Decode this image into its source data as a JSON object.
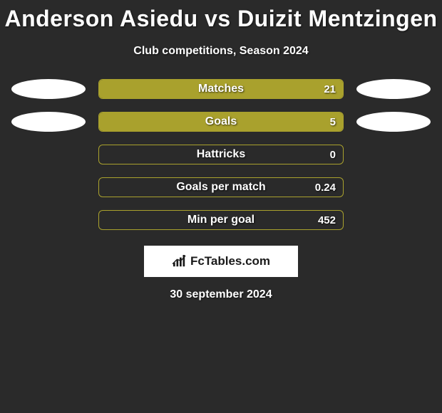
{
  "title": "Anderson Asiedu vs Duizit Mentzingen",
  "subtitle": "Club competitions, Season 2024",
  "date": "30 september 2024",
  "logo": {
    "text": "FcTables.com"
  },
  "ellipses": {
    "left_color": "#ffffff",
    "right_color": "#ffffff"
  },
  "bar_style": {
    "border_color": "#a9a12d",
    "fill_color": "#a9a12d",
    "label_fontsize": 16,
    "value_fontsize": 15,
    "height": 28,
    "border_radius": 6
  },
  "rows": [
    {
      "label": "Matches",
      "value": "21",
      "fill_pct": 100,
      "left_ellipse": true,
      "right_ellipse": true
    },
    {
      "label": "Goals",
      "value": "5",
      "fill_pct": 100,
      "left_ellipse": true,
      "right_ellipse": true
    },
    {
      "label": "Hattricks",
      "value": "0",
      "fill_pct": 0,
      "left_ellipse": false,
      "right_ellipse": false
    },
    {
      "label": "Goals per match",
      "value": "0.24",
      "fill_pct": 0,
      "left_ellipse": false,
      "right_ellipse": false
    },
    {
      "label": "Min per goal",
      "value": "452",
      "fill_pct": 0,
      "left_ellipse": false,
      "right_ellipse": false
    }
  ]
}
